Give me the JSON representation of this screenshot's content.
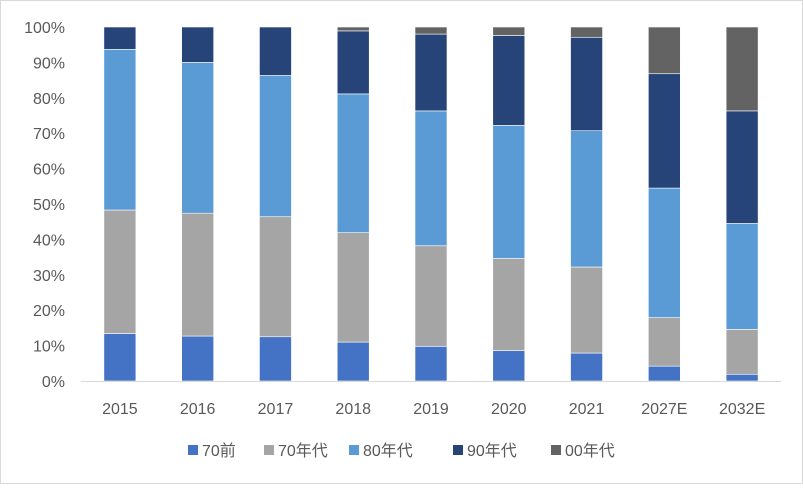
{
  "chart_data": {
    "type": "bar",
    "stacked": "percent",
    "categories": [
      "2015",
      "2016",
      "2017",
      "2018",
      "2019",
      "2020",
      "2021",
      "2027E",
      "2032E"
    ],
    "series": [
      {
        "name": "70前",
        "color": "#4472c4",
        "values": [
          13.4,
          12.7,
          12.5,
          11.0,
          9.8,
          8.6,
          7.9,
          4.2,
          1.9
        ]
      },
      {
        "name": "70年代",
        "color": "#a5a5a5",
        "values": [
          34.9,
          34.7,
          33.9,
          30.9,
          28.4,
          26.0,
          24.3,
          13.7,
          12.7
        ]
      },
      {
        "name": "80年代",
        "color": "#5b9bd5",
        "values": [
          45.4,
          42.6,
          39.9,
          39.2,
          38.1,
          37.6,
          38.5,
          36.6,
          29.9
        ]
      },
      {
        "name": "90年代",
        "color": "#264478",
        "values": [
          6.3,
          10.0,
          13.7,
          17.8,
          21.7,
          25.4,
          26.4,
          32.3,
          31.8
        ]
      },
      {
        "name": "00年代",
        "color": "#636363",
        "values": [
          0,
          0,
          0,
          1.1,
          2.0,
          2.4,
          2.9,
          13.2,
          23.7
        ]
      }
    ],
    "ylim": [
      0,
      100
    ],
    "yticks": [
      "0%",
      "10%",
      "20%",
      "30%",
      "40%",
      "50%",
      "60%",
      "70%",
      "80%",
      "90%",
      "100%"
    ],
    "grid": false,
    "legend": "bottom"
  }
}
